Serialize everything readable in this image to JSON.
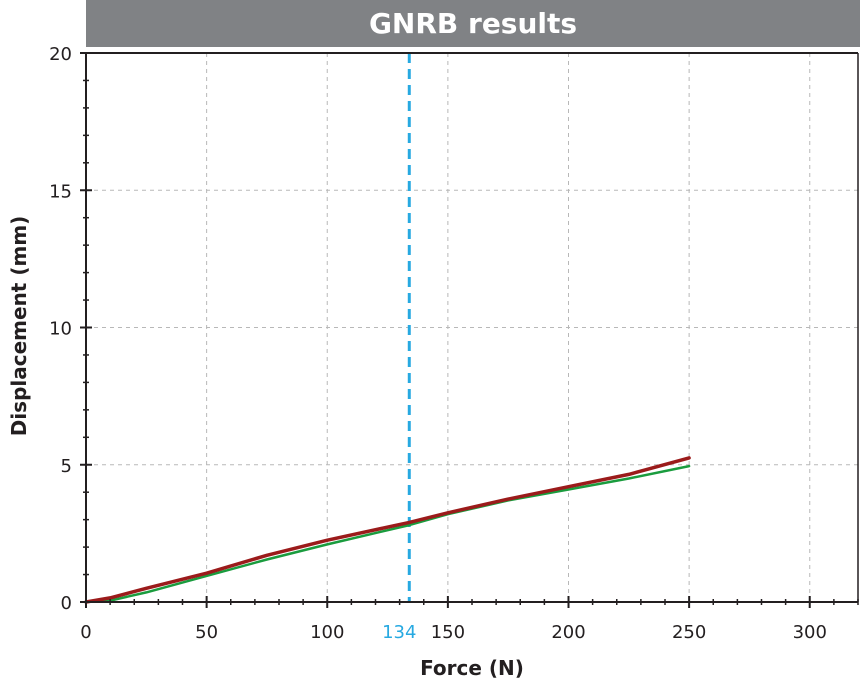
{
  "chart_data": {
    "type": "line",
    "title": "GNRB results",
    "xlabel": "Force (N)",
    "ylabel": "Displacement (mm)",
    "xlim": [
      0,
      320
    ],
    "ylim": [
      0,
      20
    ],
    "xticks": [
      0,
      50,
      100,
      150,
      200,
      250,
      300
    ],
    "yticks": [
      0,
      5,
      10,
      15,
      20
    ],
    "grid": true,
    "marker": {
      "x": 134,
      "label": "134",
      "color": "#27a9e1"
    },
    "series": [
      {
        "color": "#1a9c3e",
        "x": [
          0,
          10,
          25,
          50,
          75,
          100,
          134,
          150,
          175,
          200,
          225,
          250
        ],
        "y": [
          0,
          0.05,
          0.35,
          0.95,
          1.55,
          2.1,
          2.8,
          3.2,
          3.7,
          4.1,
          4.5,
          4.95
        ]
      },
      {
        "color": "#9b1b1b",
        "x": [
          0,
          10,
          25,
          50,
          75,
          100,
          134,
          150,
          175,
          200,
          225,
          250
        ],
        "y": [
          0,
          0.15,
          0.5,
          1.05,
          1.7,
          2.25,
          2.9,
          3.25,
          3.75,
          4.2,
          4.65,
          5.25
        ]
      }
    ]
  }
}
